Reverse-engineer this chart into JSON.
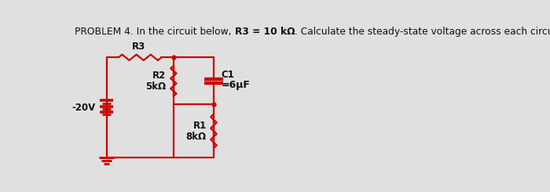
{
  "bg_color": "#e0e0e0",
  "circuit_color": "#cc0000",
  "label_color": "#111111",
  "voltage_source": "-20V",
  "r3_label": "R3",
  "r2_label": "R2",
  "r2_val": "5kΩ",
  "c1_label": "C1",
  "c1_val": "6μF",
  "r1_label": "R1",
  "r1_val": "8kΩ",
  "title_normal1": "PROBLEM 4. In the circuit below, ",
  "title_bold": "R3 = 10 kΩ",
  "title_normal2": ". Calculate the steady-state voltage across each circuit element.",
  "title_fontsize": 8.8,
  "label_fontsize": 8.5,
  "lw": 1.6,
  "xl": 0.62,
  "xm": 1.72,
  "xr": 2.38,
  "yt": 1.88,
  "yb": 0.22,
  "ymid": 1.1
}
